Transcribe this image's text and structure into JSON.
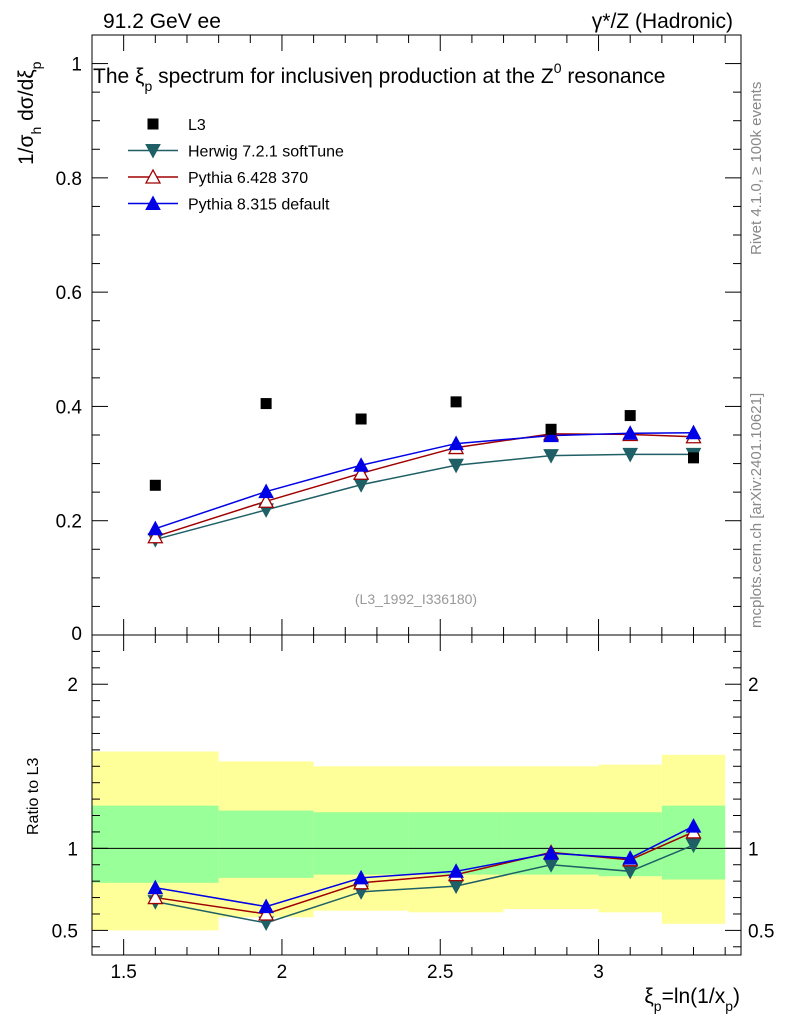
{
  "header": {
    "left_label": "91.2 GeV ee",
    "right_label": "γ*/Z (Hadronic)"
  },
  "side_labels": {
    "rivet": "Rivet 4.1.0, ≥ 100k events",
    "mcplots": "mcplots.cern.ch [arXiv:2401.10621]"
  },
  "chart_data": [
    {
      "type": "scatter",
      "panel": "main",
      "title": "The ξp spectrum for inclusiveη production at the Z0 resonance",
      "title_parts": {
        "a": "The ξ",
        "a_sub": "p",
        "b": " spectrum for inclusiveη production at the Z",
        "b_sup": "0",
        "c": " resonance"
      },
      "ylabel": "1/σh dσ/dξp",
      "ylabel_parts": {
        "a": "1/σ",
        "a_sub": "h",
        "b": "  dσ/dξ",
        "b_sub": "p"
      },
      "watermark": "(L3_1992_I336180)",
      "xlim": [
        1.4,
        3.45
      ],
      "ylim": [
        0,
        1.05
      ],
      "yticks": [
        0,
        0.2,
        0.4,
        0.6,
        0.8,
        1
      ],
      "ytick_labels": [
        "0",
        "0.2",
        "0.4",
        "0.6",
        "0.8",
        "1"
      ],
      "legend_position": "top-left",
      "data": {
        "name": "L3",
        "x": [
          1.6,
          1.95,
          2.25,
          2.55,
          2.85,
          3.1,
          3.3
        ],
        "y": [
          0.262,
          0.405,
          0.378,
          0.408,
          0.36,
          0.384,
          0.31
        ],
        "bins": [
          [
            1.4,
            1.8
          ],
          [
            1.8,
            2.1
          ],
          [
            2.1,
            2.4
          ],
          [
            2.4,
            2.7
          ],
          [
            2.7,
            3.0
          ],
          [
            3.0,
            3.2
          ],
          [
            3.2,
            3.4
          ]
        ],
        "color": "#000000",
        "marker": "square"
      },
      "series": [
        {
          "name": "Herwig 7.2.1 softTune",
          "color": "#1f5f66",
          "marker": "triangle-down-filled",
          "x": [
            1.6,
            1.95,
            2.25,
            2.55,
            2.85,
            3.1,
            3.3
          ],
          "y": [
            0.167,
            0.219,
            0.263,
            0.297,
            0.314,
            0.316,
            0.316
          ]
        },
        {
          "name": "Pythia 6.428 370",
          "color": "#a00000",
          "marker": "triangle-up-open",
          "x": [
            1.6,
            1.95,
            2.25,
            2.55,
            2.85,
            3.1,
            3.3
          ],
          "y": [
            0.172,
            0.234,
            0.283,
            0.328,
            0.352,
            0.351,
            0.347
          ]
        },
        {
          "name": "Pythia 8.315 default",
          "color": "#0000e6",
          "marker": "triangle-up-filled",
          "x": [
            1.6,
            1.95,
            2.25,
            2.55,
            2.85,
            3.1,
            3.3
          ],
          "y": [
            0.186,
            0.251,
            0.297,
            0.335,
            0.349,
            0.353,
            0.354
          ]
        }
      ]
    },
    {
      "type": "line",
      "panel": "ratio",
      "ylabel": "Ratio to L3",
      "xlabel": "ξp=ln(1/xp)",
      "xlabel_parts": {
        "a": "ξ",
        "a_sub": "p",
        "b": "=ln(1/x",
        "b_sub": "p",
        "c": ")"
      },
      "xlim": [
        1.4,
        3.45
      ],
      "xticks": [
        1.5,
        2,
        2.5,
        3
      ],
      "xtick_labels": [
        "1.5",
        "2",
        "2.5",
        "3"
      ],
      "ylim": [
        0.35,
        2.3
      ],
      "yticks": [
        0.5,
        1,
        2
      ],
      "ytick_labels": [
        "0.5",
        "1",
        "2"
      ],
      "reference_line": 1,
      "bands": {
        "bins": [
          [
            1.4,
            1.8
          ],
          [
            1.8,
            2.1
          ],
          [
            2.1,
            2.4
          ],
          [
            2.4,
            2.7
          ],
          [
            2.7,
            3.0
          ],
          [
            3.0,
            3.2
          ],
          [
            3.2,
            3.4
          ]
        ],
        "yellow": [
          [
            0.5,
            1.59
          ],
          [
            0.58,
            1.53
          ],
          [
            0.62,
            1.5
          ],
          [
            0.61,
            1.5
          ],
          [
            0.63,
            1.5
          ],
          [
            0.61,
            1.51
          ],
          [
            0.54,
            1.57
          ]
        ],
        "green": [
          [
            0.79,
            1.26
          ],
          [
            0.82,
            1.23
          ],
          [
            0.84,
            1.22
          ],
          [
            0.84,
            1.22
          ],
          [
            0.84,
            1.22
          ],
          [
            0.83,
            1.22
          ],
          [
            0.81,
            1.26
          ]
        ],
        "yellow_color": "#ffff99",
        "green_color": "#99ff99"
      },
      "series": [
        {
          "name": "Herwig 7.2.1 softTune",
          "color": "#1f5f66",
          "marker": "triangle-down-filled",
          "x": [
            1.6,
            1.95,
            2.25,
            2.55,
            2.85,
            3.1,
            3.3
          ],
          "y": [
            0.675,
            0.545,
            0.735,
            0.77,
            0.9,
            0.86,
            1.02
          ]
        },
        {
          "name": "Pythia 6.428 370",
          "color": "#a00000",
          "marker": "triangle-up-open",
          "x": [
            1.6,
            1.95,
            2.25,
            2.55,
            2.85,
            3.1,
            3.3
          ],
          "y": [
            0.7,
            0.6,
            0.79,
            0.84,
            0.975,
            0.93,
            1.1
          ]
        },
        {
          "name": "Pythia 8.315 default",
          "color": "#0000e6",
          "marker": "triangle-up-filled",
          "x": [
            1.6,
            1.95,
            2.25,
            2.55,
            2.85,
            3.1,
            3.3
          ],
          "y": [
            0.76,
            0.645,
            0.82,
            0.86,
            0.97,
            0.94,
            1.135
          ]
        }
      ]
    }
  ]
}
